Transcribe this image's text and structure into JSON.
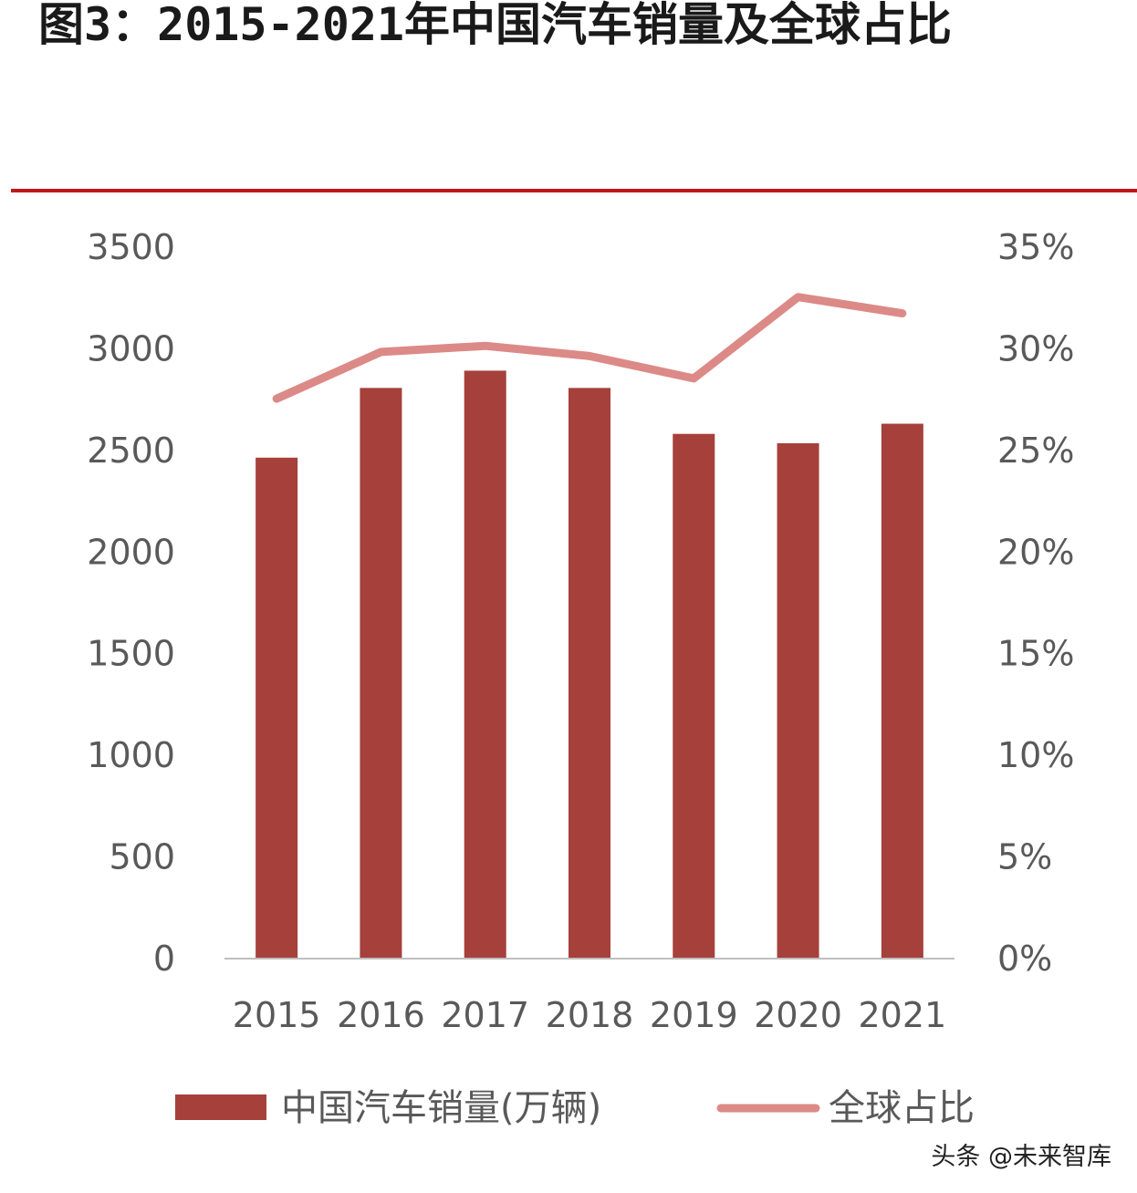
{
  "title": "图3：2015-2021年中国汽车销量及全球占比",
  "watermark": "头条 @未来智库",
  "colors": {
    "bar": "#a6403b",
    "line": "#dc8a87",
    "rule": "#c0151b",
    "axis": "#bfbfbf",
    "text": "#595959"
  },
  "chart_data": {
    "type": "bar",
    "title": "图3：2015-2021年中国汽车销量及全球占比",
    "categories": [
      "2015",
      "2016",
      "2017",
      "2018",
      "2019",
      "2020",
      "2021"
    ],
    "series": [
      {
        "name": "中国汽车销量(万辆)",
        "type": "bar",
        "axis": "left",
        "values": [
          2460,
          2803,
          2888,
          2803,
          2577,
          2531,
          2627
        ]
      },
      {
        "name": "全球占比",
        "type": "line",
        "axis": "right",
        "values": [
          0.275,
          0.298,
          0.301,
          0.296,
          0.285,
          0.325,
          0.317
        ]
      }
    ],
    "y_left": {
      "ylim": [
        0,
        3500
      ],
      "ticks": [
        "0",
        "500",
        "1000",
        "1500",
        "2000",
        "2500",
        "3000",
        "3500"
      ]
    },
    "y_right": {
      "ylim": [
        0,
        0.35
      ],
      "ticks": [
        "0%",
        "5%",
        "10%",
        "15%",
        "20%",
        "25%",
        "30%",
        "35%"
      ]
    },
    "grid": false,
    "legend": "bottom"
  }
}
